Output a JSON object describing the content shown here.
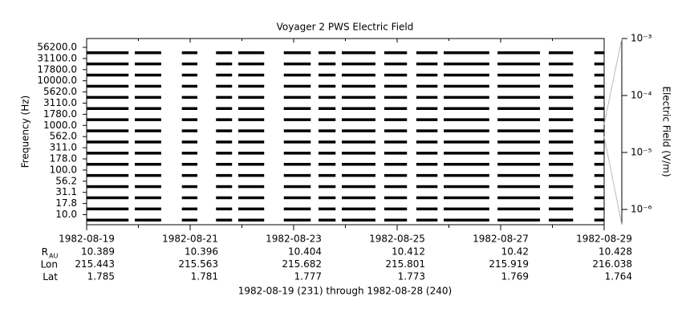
{
  "chart_data": {
    "type": "spectrum-strips",
    "title": "Voyager 2 PWS Electric Field",
    "ylabel": "Frequency (Hz)",
    "y2label": "Electric Field (V/m)",
    "xlabel": "1982-08-19 (231) through 1982-08-28 (240)",
    "xlim": [
      231,
      241
    ],
    "xticks": [
      {
        "value": 231,
        "label": "1982-08-19"
      },
      {
        "value": 233,
        "label": "1982-08-21"
      },
      {
        "value": 235,
        "label": "1982-08-23"
      },
      {
        "value": 237,
        "label": "1982-08-25"
      },
      {
        "value": 239,
        "label": "1982-08-27"
      },
      {
        "value": 241,
        "label": "1982-08-29"
      }
    ],
    "xminorticks": [
      232,
      234,
      236,
      238,
      240
    ],
    "yticks": [
      {
        "value": 56200,
        "label": "56200.0"
      },
      {
        "value": 31100,
        "label": "31100.0"
      },
      {
        "value": 17800,
        "label": "17800.0"
      },
      {
        "value": 10000,
        "label": "10000.0"
      },
      {
        "value": 5620,
        "label": "5620.0"
      },
      {
        "value": 3110,
        "label": "3110.0"
      },
      {
        "value": 1780,
        "label": "1780.0"
      },
      {
        "value": 1000,
        "label": "1000.0"
      },
      {
        "value": 562,
        "label": "562.0"
      },
      {
        "value": 311,
        "label": "311.0"
      },
      {
        "value": 178,
        "label": "178.0"
      },
      {
        "value": 100,
        "label": "100.0"
      },
      {
        "value": 56.2,
        "label": "56.2"
      },
      {
        "value": 31.1,
        "label": "31.1"
      },
      {
        "value": 17.8,
        "label": "17.8"
      },
      {
        "value": 10,
        "label": "10.0"
      }
    ],
    "y2log": true,
    "y2lim": [
      5.4e-07,
      0.001
    ],
    "y2ticks": [
      {
        "value": 0.001,
        "label": "10⁻³"
      },
      {
        "value": 0.0001,
        "label": "10⁻⁴"
      },
      {
        "value": 1e-05,
        "label": "10⁻⁵"
      },
      {
        "value": 1e-06,
        "label": "10⁻⁶"
      }
    ],
    "color": "#000000",
    "segments": [
      [
        231.0,
        231.81
      ],
      [
        231.93,
        232.44
      ],
      [
        232.84,
        233.14
      ],
      [
        233.5,
        233.81
      ],
      [
        233.93,
        234.43
      ],
      [
        234.81,
        235.33
      ],
      [
        235.48,
        235.81
      ],
      [
        235.93,
        236.58
      ],
      [
        236.75,
        237.19
      ],
      [
        237.37,
        237.78
      ],
      [
        237.9,
        238.78
      ],
      [
        238.94,
        239.76
      ],
      [
        239.93,
        240.4
      ],
      [
        240.81,
        241.0
      ]
    ],
    "ephemeris": [
      {
        "label": "R",
        "sub": "AU",
        "values": [
          10.389,
          10.396,
          10.404,
          10.412,
          10.42,
          10.428
        ]
      },
      {
        "label": "Lon",
        "values": [
          215.443,
          215.563,
          215.682,
          215.801,
          215.919,
          216.038
        ]
      },
      {
        "label": "Lat",
        "values": [
          1.785,
          1.781,
          1.777,
          1.773,
          1.769,
          1.764
        ]
      }
    ]
  }
}
